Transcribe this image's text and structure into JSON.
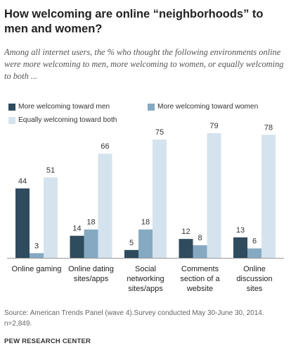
{
  "title": "How welcoming are online “neighborhoods”  to men and women?",
  "subtitle": "Among all internet users, the % who thought the following environments online were more welcoming to men, more welcoming to women, or equally welcoming to both ...",
  "source": "Source: American Trends Panel (wave 4).Survey conducted May 30-June 30, 2014. n=2,849.",
  "brand": "PEW RESEARCH CENTER",
  "colors": {
    "men": "#2f4b5e",
    "women": "#86a9c2",
    "both": "#d5e3ee"
  },
  "chart_data": {
    "type": "bar",
    "title": "How welcoming are online “neighborhoods”  to men and women?",
    "categories": [
      "Online gaming",
      "Online dating sites/apps",
      "Social networking sites/apps",
      "Comments section of a website",
      "Online discussion sites"
    ],
    "category_lines": [
      [
        "Online gaming"
      ],
      [
        "Online dating",
        "sites/apps"
      ],
      [
        "Social",
        "networking",
        "sites/apps"
      ],
      [
        "Comments",
        "section of a",
        "website"
      ],
      [
        "Online",
        "discussion",
        "sites"
      ]
    ],
    "series": [
      {
        "name": "More welcoming toward men",
        "values": [
          44,
          14,
          5,
          12,
          13
        ]
      },
      {
        "name": "More welcoming toward women",
        "values": [
          3,
          18,
          18,
          8,
          6
        ]
      },
      {
        "name": "Equally welcoming toward both",
        "values": [
          51,
          66,
          75,
          79,
          78
        ]
      }
    ],
    "ylim": [
      0,
      100
    ],
    "grid": false,
    "legend": "top"
  }
}
